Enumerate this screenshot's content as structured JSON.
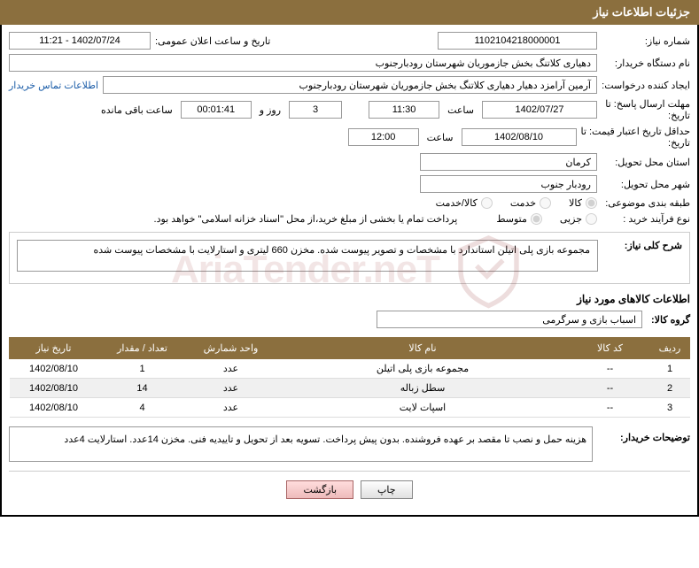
{
  "header": {
    "title": "جزئیات اطلاعات نیاز"
  },
  "form": {
    "need_number_label": "شماره نیاز:",
    "need_number": "1102104218000001",
    "announce_date_label": "تاریخ و ساعت اعلان عمومی:",
    "announce_date": "1402/07/24 - 11:21",
    "buyer_org_label": "نام دستگاه خریدار:",
    "buyer_org": "دهیاری کلاتنگ بخش جازموریان شهرستان رودبارجنوب",
    "requester_label": "ایجاد کننده درخواست:",
    "requester": "آرمین آرامزد دهیار دهیاری کلاتنگ بخش جازموریان شهرستان رودبارجنوب",
    "contact_link": "اطلاعات تماس خریدار",
    "deadline_send_label_1": "مهلت ارسال پاسخ: تا",
    "deadline_send_label_2": "تاریخ:",
    "deadline_send_date": "1402/07/27",
    "time_label": "ساعت",
    "deadline_send_time": "11:30",
    "days_remaining": "3",
    "days_text": "روز و",
    "time_remaining": "00:01:41",
    "remaining_text": "ساعت باقی مانده",
    "min_validity_label_1": "حداقل تاریخ اعتبار قیمت: تا",
    "min_validity_label_2": "تاریخ:",
    "min_validity_date": "1402/08/10",
    "min_validity_time": "12:00",
    "province_label": "استان محل تحویل:",
    "province": "کرمان",
    "city_label": "شهر محل تحویل:",
    "city": "رودبار جنوب",
    "category_label": "طبقه بندی موضوعی:",
    "cat_goods": "کالا",
    "cat_service": "خدمت",
    "cat_goods_service": "کالا/خدمت",
    "purchase_type_label": "نوع فرآیند خرید :",
    "pt_minor": "جزیی",
    "pt_medium": "متوسط",
    "purchase_note": "پرداخت تمام یا بخشی از مبلغ خرید،از محل \"اسناد خزانه اسلامی\" خواهد بود.",
    "overall_desc_label": "شرح کلی نیاز:",
    "overall_desc": "مجموعه بازی پلی اتیلن استاندارد با مشخصات و تصویر پیوست شده. مخزن 660 لیتری و استارلایت با مشخصات پیوست شده",
    "items_section_title": "اطلاعات کالاهای مورد نیاز",
    "group_label": "گروه کالا:",
    "group": "اسباب بازی و سرگرمی",
    "buyer_notes_label": "توضیحات خریدار:",
    "buyer_notes": "هزینه حمل و نصب تا مقصد بر عهده فروشنده. بدون پیش پرداخت. تسویه بعد از تحویل و تاییدیه فنی. مخزن 14عدد. استارلایت 4عدد"
  },
  "table": {
    "headers": {
      "row": "ردیف",
      "code": "کد کالا",
      "name": "نام کالا",
      "unit": "واحد شمارش",
      "qty": "تعداد / مقدار",
      "date": "تاریخ نیاز"
    },
    "rows": [
      {
        "num": "1",
        "code": "--",
        "name": "مجموعه بازی پلی اتیلن",
        "unit": "عدد",
        "qty": "1",
        "date": "1402/08/10"
      },
      {
        "num": "2",
        "code": "--",
        "name": "سطل زباله",
        "unit": "عدد",
        "qty": "14",
        "date": "1402/08/10"
      },
      {
        "num": "3",
        "code": "--",
        "name": "اسپات لایت",
        "unit": "عدد",
        "qty": "4",
        "date": "1402/08/10"
      }
    ]
  },
  "buttons": {
    "print": "چاپ",
    "back": "بازگشت"
  },
  "watermark": "AriaTender.neT"
}
